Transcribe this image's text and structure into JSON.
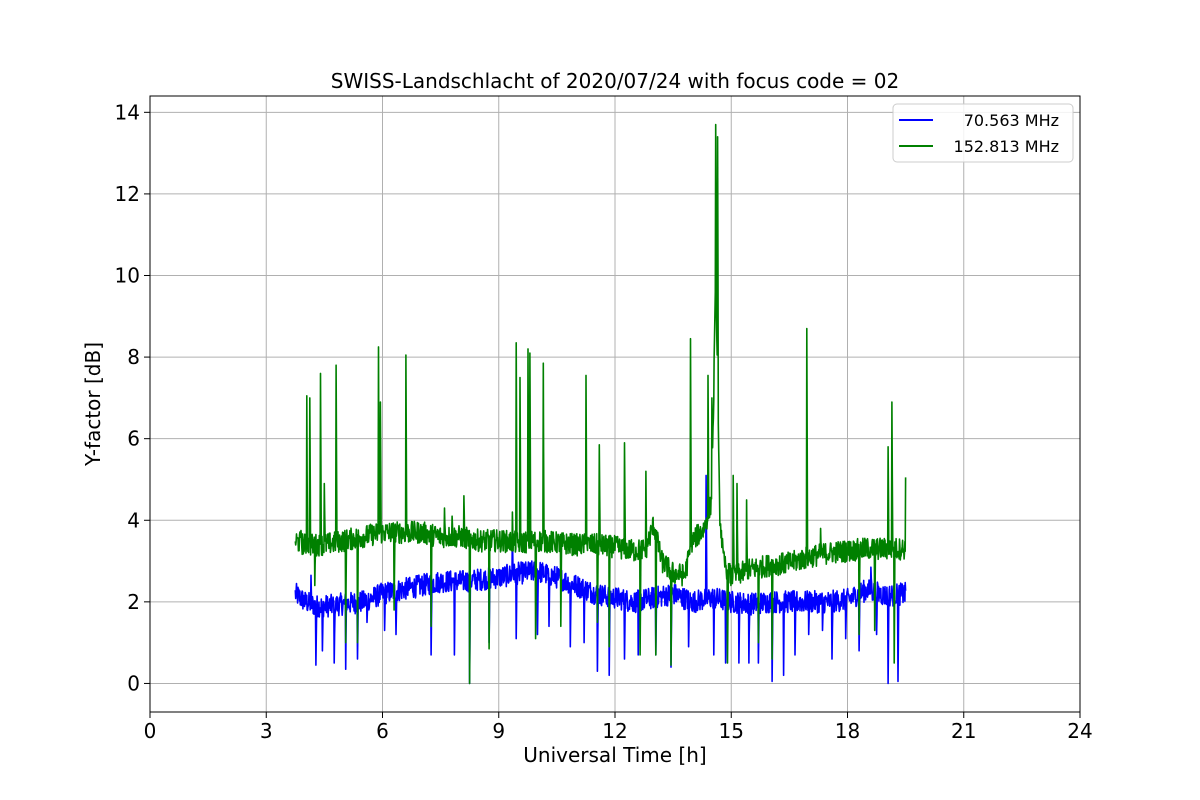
{
  "chart_data": {
    "type": "line",
    "title": "SWISS-Landschlacht of 2020/07/24 with focus code = 02",
    "xlabel": "Universal Time [h]",
    "ylabel": "Y-factor [dB]",
    "xlim": [
      0,
      24
    ],
    "ylim": [
      -0.7,
      14.4
    ],
    "xticks": [
      0,
      3,
      6,
      9,
      12,
      15,
      18,
      21,
      24
    ],
    "xtick_labels": [
      "0",
      "3",
      "6",
      "9",
      "12",
      "15",
      "18",
      "21",
      "24"
    ],
    "yticks": [
      0,
      2,
      4,
      6,
      8,
      10,
      12,
      14
    ],
    "ytick_labels": [
      "0",
      "2",
      "4",
      "6",
      "8",
      "10",
      "12",
      "14"
    ],
    "grid": true,
    "legend_position": "top-right",
    "series": [
      {
        "name": "70.563 MHz",
        "color": "#0000ff",
        "x": [
          3.75,
          4.0,
          4.3,
          4.6,
          5.0,
          5.5,
          6.0,
          6.5,
          7.0,
          7.5,
          8.0,
          8.5,
          9.0,
          9.5,
          10.0,
          10.5,
          11.0,
          11.5,
          12.0,
          12.5,
          13.0,
          13.5,
          14.0,
          14.5,
          15.0,
          15.5,
          16.0,
          16.5,
          17.0,
          17.5,
          18.0,
          18.5,
          19.0,
          19.5
        ],
        "y": [
          2.2,
          2.0,
          1.9,
          1.9,
          1.95,
          2.0,
          2.2,
          2.3,
          2.4,
          2.5,
          2.5,
          2.55,
          2.6,
          2.7,
          2.75,
          2.6,
          2.4,
          2.2,
          2.1,
          2.0,
          2.1,
          2.2,
          2.0,
          2.1,
          2.0,
          1.95,
          2.0,
          2.0,
          2.0,
          2.0,
          2.05,
          2.3,
          2.15,
          2.2
        ],
        "spikes": [
          {
            "x": 4.15,
            "y": 2.65
          },
          {
            "x": 4.28,
            "y": 0.45
          },
          {
            "x": 4.45,
            "y": 0.8
          },
          {
            "x": 4.75,
            "y": 0.5
          },
          {
            "x": 5.05,
            "y": 0.35
          },
          {
            "x": 5.35,
            "y": 0.6
          },
          {
            "x": 5.6,
            "y": 1.5
          },
          {
            "x": 6.05,
            "y": 1.3
          },
          {
            "x": 6.35,
            "y": 1.2
          },
          {
            "x": 7.25,
            "y": 0.7
          },
          {
            "x": 7.85,
            "y": 0.7
          },
          {
            "x": 8.25,
            "y": 0.0
          },
          {
            "x": 8.75,
            "y": 1.0
          },
          {
            "x": 9.35,
            "y": 3.8
          },
          {
            "x": 9.45,
            "y": 1.1
          },
          {
            "x": 10.0,
            "y": 1.2
          },
          {
            "x": 10.3,
            "y": 1.4
          },
          {
            "x": 10.85,
            "y": 0.9
          },
          {
            "x": 11.2,
            "y": 1.0
          },
          {
            "x": 11.55,
            "y": 0.3
          },
          {
            "x": 11.85,
            "y": 0.2
          },
          {
            "x": 12.25,
            "y": 0.6
          },
          {
            "x": 12.6,
            "y": 0.7
          },
          {
            "x": 13.05,
            "y": 0.7
          },
          {
            "x": 13.45,
            "y": 0.4
          },
          {
            "x": 13.9,
            "y": 0.9
          },
          {
            "x": 14.35,
            "y": 5.1
          },
          {
            "x": 14.55,
            "y": 0.7
          },
          {
            "x": 14.85,
            "y": 0.5
          },
          {
            "x": 15.2,
            "y": 0.5
          },
          {
            "x": 15.45,
            "y": 0.5
          },
          {
            "x": 15.7,
            "y": 0.5
          },
          {
            "x": 16.05,
            "y": 0.05
          },
          {
            "x": 16.35,
            "y": 0.2
          },
          {
            "x": 16.65,
            "y": 0.7
          },
          {
            "x": 17.0,
            "y": 1.2
          },
          {
            "x": 17.35,
            "y": 1.3
          },
          {
            "x": 17.6,
            "y": 0.6
          },
          {
            "x": 17.95,
            "y": 1.1
          },
          {
            "x": 18.3,
            "y": 0.8
          },
          {
            "x": 18.6,
            "y": 2.85
          },
          {
            "x": 18.75,
            "y": 1.2
          },
          {
            "x": 19.05,
            "y": 0.0
          },
          {
            "x": 19.3,
            "y": 0.05
          }
        ]
      },
      {
        "name": "152.813 MHz",
        "color": "#008000",
        "x": [
          3.75,
          4.0,
          4.5,
          5.0,
          5.5,
          6.0,
          6.5,
          7.0,
          7.5,
          8.0,
          8.5,
          9.0,
          9.5,
          10.0,
          10.5,
          11.0,
          11.5,
          12.0,
          12.5,
          12.8,
          13.0,
          13.2,
          13.5,
          13.8,
          14.0,
          14.3,
          14.5,
          14.6,
          14.7,
          14.8,
          15.0,
          15.5,
          16.0,
          16.5,
          17.0,
          17.5,
          18.0,
          18.5,
          19.0,
          19.5
        ],
        "y": [
          3.5,
          3.4,
          3.4,
          3.5,
          3.6,
          3.7,
          3.7,
          3.7,
          3.6,
          3.6,
          3.5,
          3.5,
          3.45,
          3.5,
          3.45,
          3.4,
          3.4,
          3.35,
          3.25,
          3.3,
          3.9,
          3.0,
          2.7,
          2.65,
          3.5,
          3.8,
          4.5,
          10.0,
          4.2,
          3.0,
          2.6,
          2.8,
          2.9,
          2.95,
          3.1,
          3.2,
          3.25,
          3.3,
          3.3,
          3.3
        ],
        "spikes": [
          {
            "x": 3.9,
            "y": 3.75
          },
          {
            "x": 4.05,
            "y": 7.05
          },
          {
            "x": 4.12,
            "y": 7.0
          },
          {
            "x": 4.25,
            "y": 2.4
          },
          {
            "x": 4.4,
            "y": 7.6
          },
          {
            "x": 4.5,
            "y": 4.9
          },
          {
            "x": 4.8,
            "y": 7.8
          },
          {
            "x": 5.05,
            "y": 1.0
          },
          {
            "x": 5.35,
            "y": 1.0
          },
          {
            "x": 5.9,
            "y": 8.25
          },
          {
            "x": 5.95,
            "y": 6.9
          },
          {
            "x": 6.3,
            "y": 1.8
          },
          {
            "x": 6.6,
            "y": 8.05
          },
          {
            "x": 7.25,
            "y": 1.4
          },
          {
            "x": 7.6,
            "y": 4.3
          },
          {
            "x": 7.8,
            "y": 4.1
          },
          {
            "x": 8.1,
            "y": 4.6
          },
          {
            "x": 8.25,
            "y": 0.0
          },
          {
            "x": 8.75,
            "y": 0.85
          },
          {
            "x": 9.35,
            "y": 4.2
          },
          {
            "x": 9.45,
            "y": 8.35
          },
          {
            "x": 9.55,
            "y": 7.5
          },
          {
            "x": 9.75,
            "y": 8.2
          },
          {
            "x": 9.8,
            "y": 8.1
          },
          {
            "x": 9.95,
            "y": 1.1
          },
          {
            "x": 10.15,
            "y": 7.85
          },
          {
            "x": 10.6,
            "y": 1.4
          },
          {
            "x": 11.25,
            "y": 7.55
          },
          {
            "x": 11.55,
            "y": 1.5
          },
          {
            "x": 11.6,
            "y": 5.85
          },
          {
            "x": 11.85,
            "y": 0.9
          },
          {
            "x": 12.25,
            "y": 5.9
          },
          {
            "x": 12.65,
            "y": 0.7
          },
          {
            "x": 12.8,
            "y": 5.2
          },
          {
            "x": 13.05,
            "y": 0.7
          },
          {
            "x": 13.45,
            "y": 0.45
          },
          {
            "x": 13.95,
            "y": 8.45
          },
          {
            "x": 14.4,
            "y": 7.55
          },
          {
            "x": 14.5,
            "y": 7.0
          },
          {
            "x": 14.6,
            "y": 13.7
          },
          {
            "x": 14.65,
            "y": 13.4
          },
          {
            "x": 14.9,
            "y": 0.5
          },
          {
            "x": 15.05,
            "y": 5.1
          },
          {
            "x": 15.15,
            "y": 4.9
          },
          {
            "x": 15.4,
            "y": 4.5
          },
          {
            "x": 15.7,
            "y": 1.0
          },
          {
            "x": 16.05,
            "y": 0.6
          },
          {
            "x": 16.95,
            "y": 8.7
          },
          {
            "x": 17.3,
            "y": 3.8
          },
          {
            "x": 18.3,
            "y": 1.2
          },
          {
            "x": 18.7,
            "y": 1.3
          },
          {
            "x": 19.05,
            "y": 5.8
          },
          {
            "x": 19.15,
            "y": 6.9
          },
          {
            "x": 19.2,
            "y": 0.5
          },
          {
            "x": 19.5,
            "y": 5.05
          }
        ]
      }
    ]
  }
}
